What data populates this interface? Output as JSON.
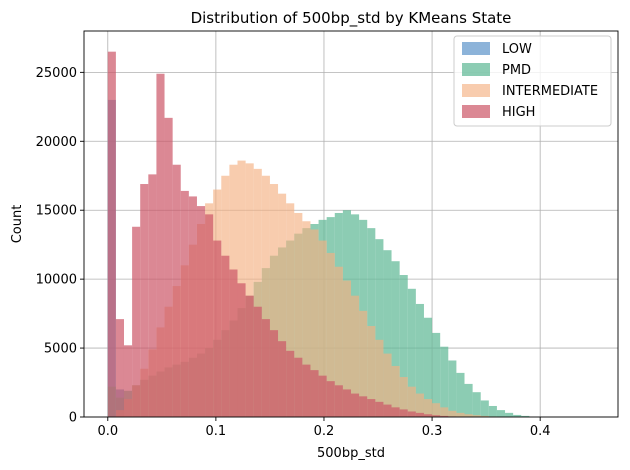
{
  "chart_data": {
    "type": "histogram",
    "title": "Distribution of 500bp_std by KMeans State",
    "xlabel": "500bp_std",
    "ylabel": "Count",
    "xlim": [
      -0.022,
      0.472
    ],
    "ylim": [
      0,
      28000
    ],
    "xticks": [
      0.0,
      0.1,
      0.2,
      0.3,
      0.4
    ],
    "xtick_labels": [
      "0.0",
      "0.1",
      "0.2",
      "0.3",
      "0.4"
    ],
    "yticks": [
      0,
      5000,
      10000,
      15000,
      20000,
      25000
    ],
    "ytick_labels": [
      "0",
      "5000",
      "10000",
      "15000",
      "20000",
      "25000"
    ],
    "grid": true,
    "legend_position": "top-right",
    "bin_width": 0.0075,
    "bin_start": 0.0,
    "series": [
      {
        "name": "LOW",
        "color": "#6699cc",
        "alpha": 0.75,
        "values": [
          23000,
          2000,
          0,
          0,
          0,
          0,
          0,
          0,
          0,
          0,
          0,
          0,
          0,
          0,
          0,
          0,
          0,
          0,
          0,
          0,
          0,
          0,
          0,
          0,
          0,
          0,
          0,
          0,
          0,
          0,
          0,
          0,
          0,
          0,
          0,
          0,
          0,
          0,
          0,
          0,
          0,
          0,
          0,
          0,
          0,
          0,
          0,
          0,
          0,
          0,
          0,
          0,
          0,
          0,
          0,
          0,
          0,
          0,
          0,
          0
        ]
      },
      {
        "name": "PMD",
        "color": "#66bb99",
        "alpha": 0.75,
        "values": [
          2200,
          1400,
          1900,
          2300,
          2700,
          3000,
          3300,
          3600,
          3800,
          4000,
          4300,
          4600,
          5000,
          5600,
          6300,
          7000,
          7900,
          8800,
          9800,
          10800,
          11700,
          12300,
          12800,
          13300,
          13700,
          14000,
          14300,
          14500,
          14800,
          15000,
          14700,
          14300,
          13700,
          12900,
          12100,
          11300,
          10300,
          9300,
          8200,
          7200,
          6100,
          5100,
          4100,
          3200,
          2400,
          1800,
          1200,
          800,
          500,
          300,
          150,
          80,
          0,
          0,
          0,
          0,
          0,
          0,
          0,
          0
        ]
      },
      {
        "name": "INTERMEDIATE",
        "color": "#f4b183",
        "alpha": 0.65,
        "values": [
          0,
          500,
          1300,
          2300,
          3500,
          4900,
          6500,
          8000,
          9500,
          11000,
          12500,
          14000,
          15500,
          16500,
          17500,
          18300,
          18600,
          18400,
          18000,
          17500,
          16900,
          16200,
          15500,
          14800,
          14200,
          13600,
          12800,
          11900,
          10900,
          9900,
          8800,
          7700,
          6600,
          5600,
          4600,
          3700,
          2900,
          2200,
          1700,
          1300,
          1000,
          700,
          450,
          300,
          200,
          130,
          80,
          40,
          10,
          0,
          0,
          0,
          0,
          0,
          0,
          0,
          0,
          0,
          0,
          0
        ]
      },
      {
        "name": "HIGH",
        "color": "#cc5566",
        "alpha": 0.7,
        "values": [
          26500,
          7100,
          5200,
          13800,
          16900,
          17600,
          24900,
          21700,
          18300,
          16400,
          16000,
          15300,
          14700,
          12800,
          11700,
          10700,
          9700,
          8800,
          8000,
          7100,
          6300,
          5500,
          4800,
          4300,
          3800,
          3400,
          3000,
          2600,
          2300,
          2000,
          1700,
          1500,
          1300,
          1100,
          900,
          700,
          550,
          400,
          300,
          200,
          130,
          80,
          40,
          20,
          10,
          0,
          0,
          0,
          0,
          0,
          0,
          0,
          0,
          0,
          0,
          0,
          0,
          0,
          0,
          0
        ]
      }
    ]
  }
}
